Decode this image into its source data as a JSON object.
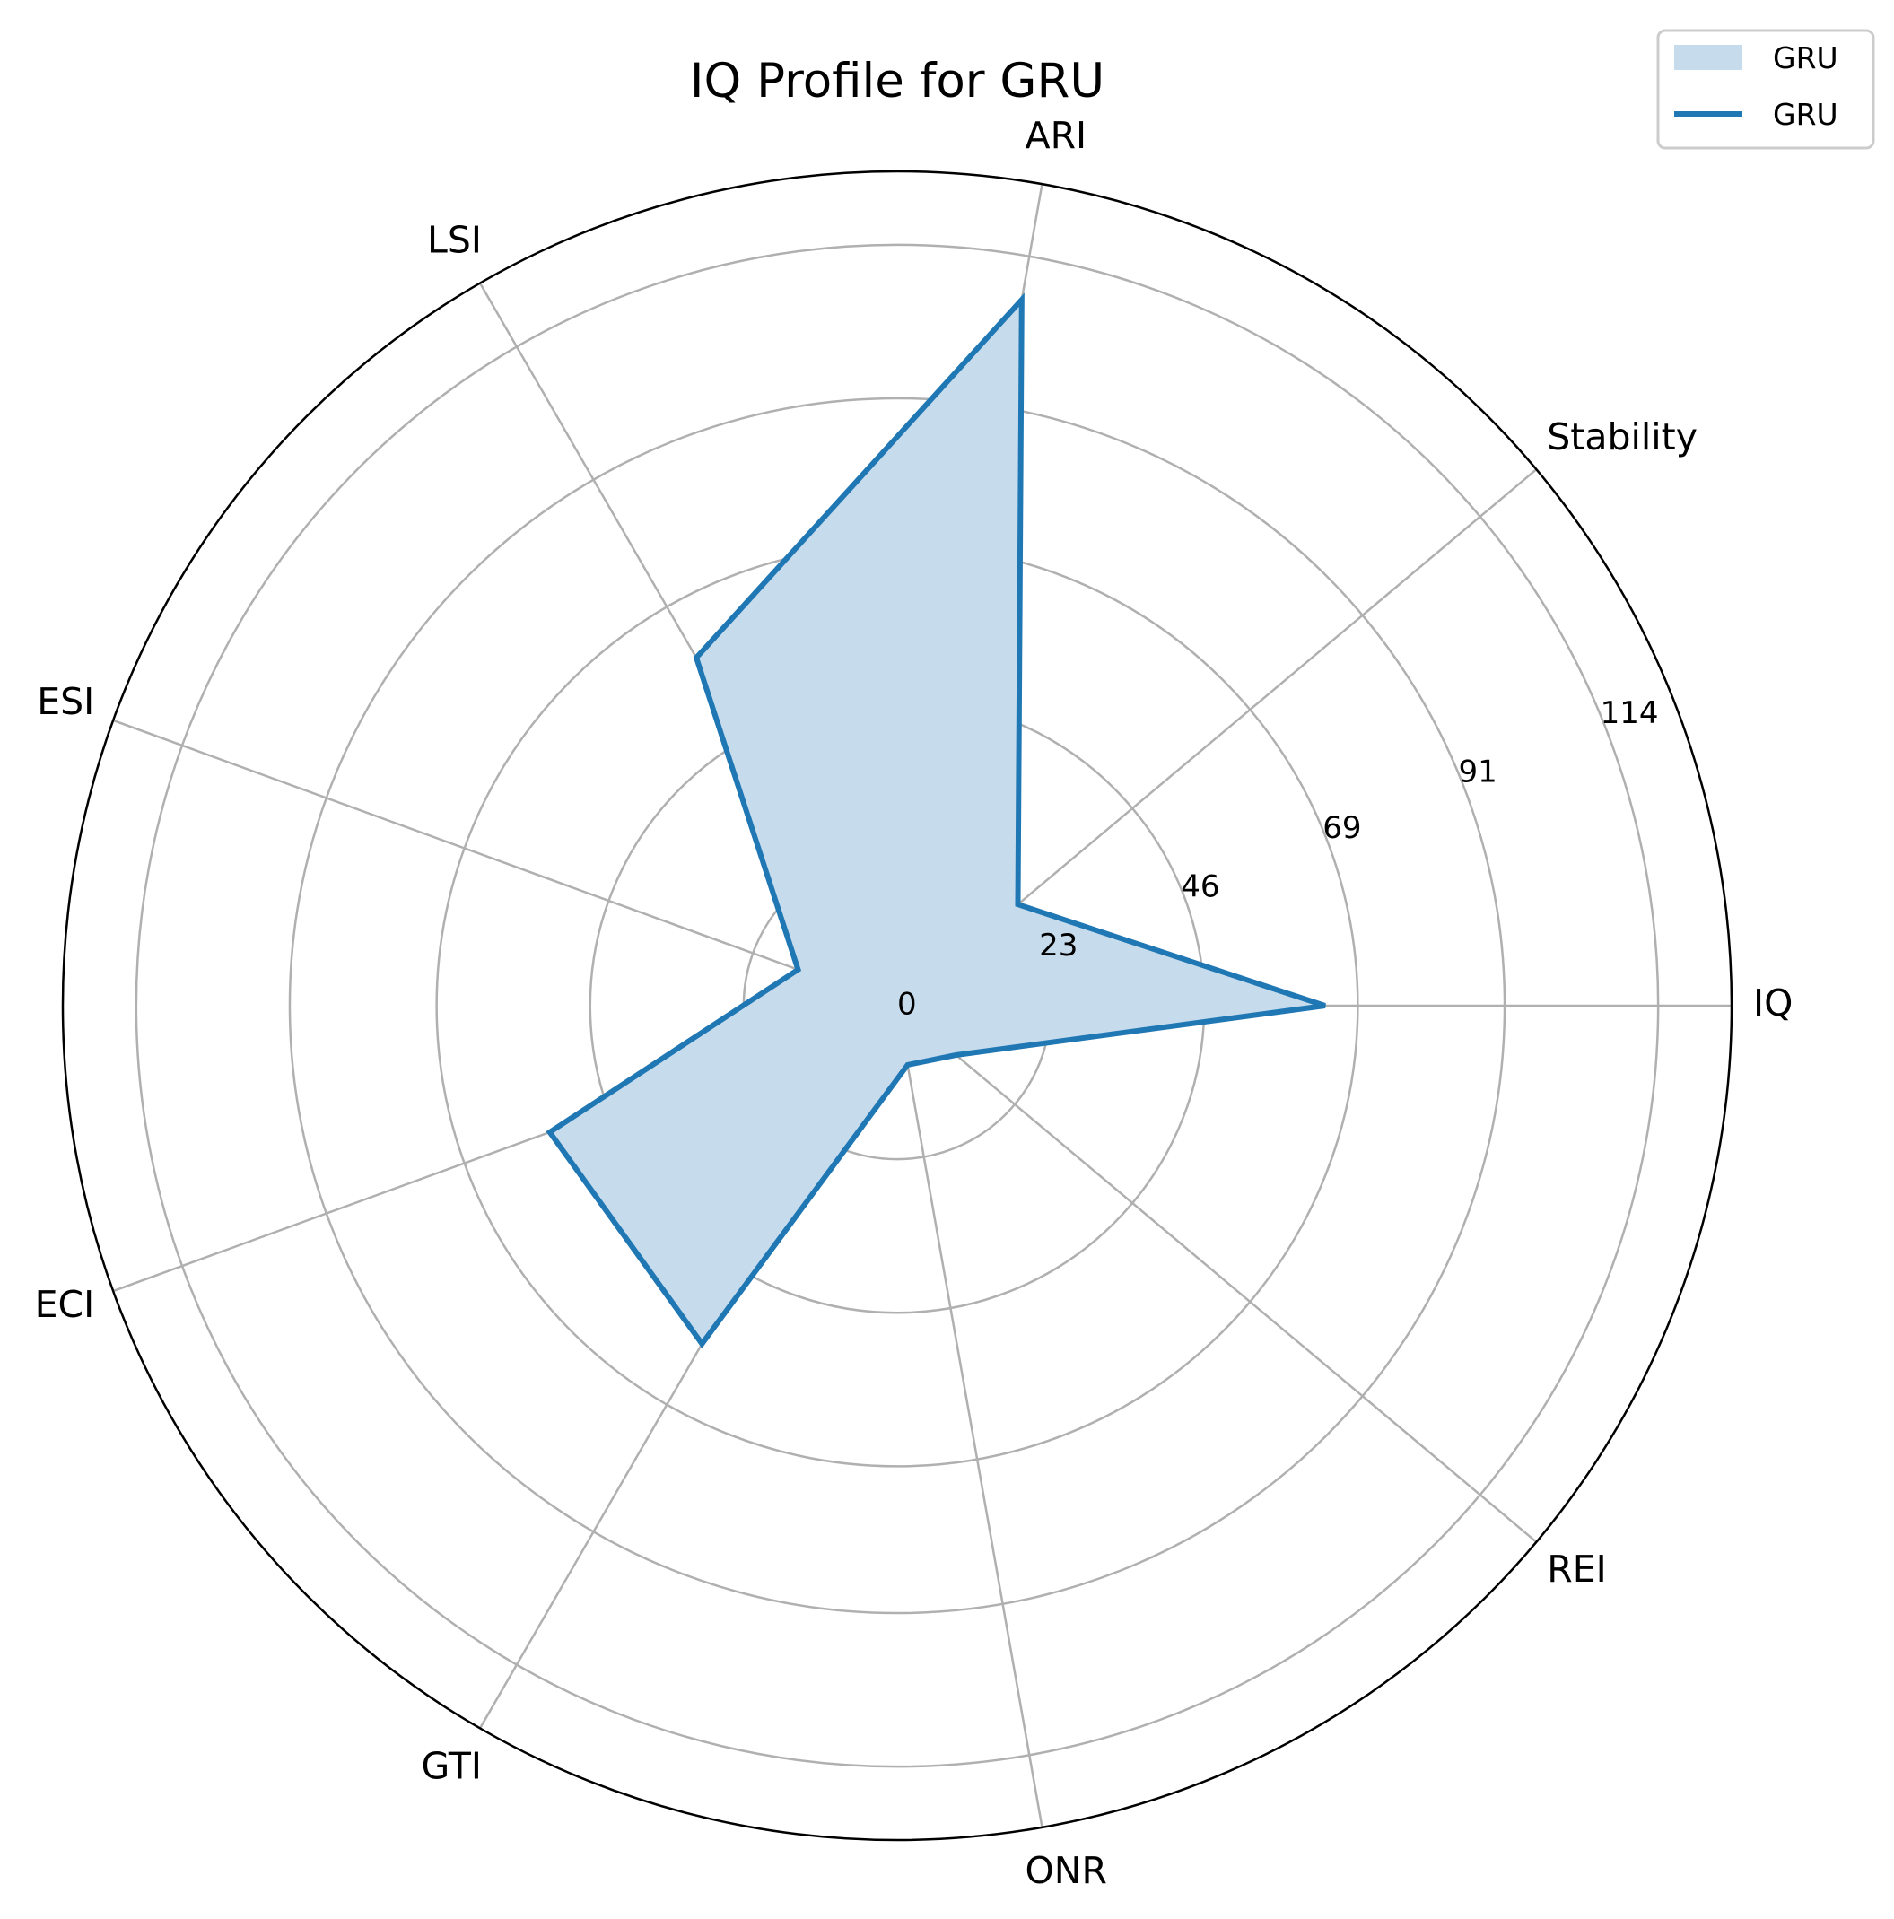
{
  "chart_data": {
    "type": "radar",
    "title": "IQ Profile for GRU",
    "axes": [
      "IQ",
      "Stability",
      "ARI",
      "LSI",
      "ESI",
      "ECI",
      "GTI",
      "ONR",
      "REI"
    ],
    "series": [
      {
        "name": "GRU",
        "values": [
          64.1,
          23.6,
          107.4,
          60.2,
          15.8,
          55.4,
          58.5,
          9.0,
          11.5
        ]
      }
    ],
    "rlim": [
      0,
      125
    ],
    "ticks": [
      0,
      23,
      46,
      69,
      91,
      114
    ],
    "grid": true,
    "legend": {
      "position": "top-right",
      "entries": [
        "GRU",
        "GRU"
      ]
    },
    "colors": {
      "line": "#1f77b4",
      "fill": "#c6dbec",
      "grid": "#b0b0b0",
      "frame": "#000000"
    }
  }
}
